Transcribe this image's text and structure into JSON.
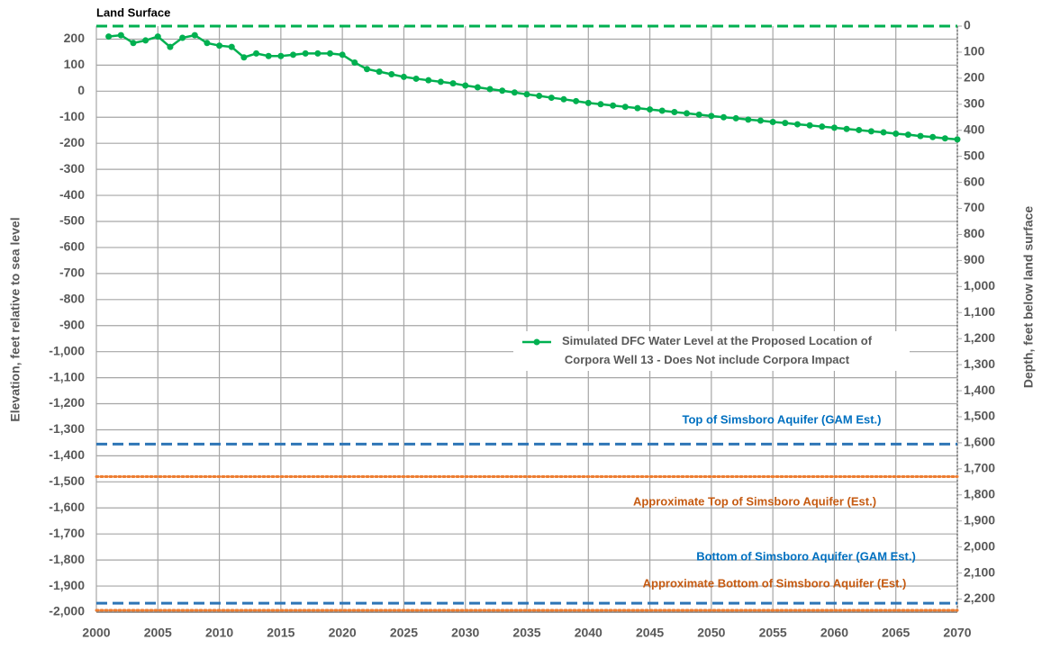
{
  "chart_data": {
    "type": "line",
    "ylabel": "Elevation, feet relative to sea level",
    "y2label": "Depth, feet below land surface",
    "x": [
      2001,
      2002,
      2003,
      2004,
      2005,
      2006,
      2007,
      2008,
      2009,
      2010,
      2011,
      2012,
      2013,
      2014,
      2015,
      2016,
      2017,
      2018,
      2019,
      2020,
      2021,
      2022,
      2023,
      2024,
      2025,
      2026,
      2027,
      2028,
      2029,
      2030,
      2031,
      2032,
      2033,
      2034,
      2035,
      2036,
      2037,
      2038,
      2039,
      2040,
      2041,
      2042,
      2043,
      2044,
      2045,
      2046,
      2047,
      2048,
      2049,
      2050,
      2051,
      2052,
      2053,
      2054,
      2055,
      2056,
      2057,
      2058,
      2059,
      2060,
      2061,
      2062,
      2063,
      2064,
      2065,
      2066,
      2067,
      2068,
      2069,
      2070
    ],
    "series": [
      {
        "name": "Simulated DFC Water Level at the Proposed Location of\nCorpora Well 13  - Does Not include Corpora Impact",
        "color": "#00b050",
        "values": [
          210,
          215,
          185,
          195,
          210,
          170,
          205,
          215,
          185,
          175,
          170,
          130,
          145,
          135,
          135,
          140,
          145,
          145,
          145,
          140,
          110,
          85,
          75,
          65,
          55,
          48,
          42,
          36,
          30,
          22,
          15,
          8,
          2,
          -5,
          -12,
          -18,
          -25,
          -31,
          -38,
          -45,
          -50,
          -55,
          -60,
          -65,
          -70,
          -75,
          -80,
          -85,
          -90,
          -95,
          -100,
          -104,
          -109,
          -113,
          -118,
          -122,
          -127,
          -131,
          -136,
          -140,
          -145,
          -149,
          -154,
          -158,
          -163,
          -167,
          -172,
          -176,
          -181,
          -185
        ]
      }
    ],
    "reference_lines": [
      {
        "label": "Land Surface",
        "value": 250,
        "color": "#00b050",
        "style": "dashed"
      },
      {
        "label": "Top of Simsboro Aquifer (GAM Est.)",
        "value": -1355,
        "color": "#2e75b6",
        "label_color": "#0070c0",
        "style": "dashed"
      },
      {
        "label": "Approximate Top of Simsboro Aquifer (Est.)",
        "value": -1480,
        "color": "#ed7d31",
        "label_color": "#c55a11",
        "style": "dotted"
      },
      {
        "label": "Bottom of Simsboro Aquifer (GAM Est.)",
        "value": -1966,
        "color": "#2e75b6",
        "label_color": "#0070c0",
        "style": "dashed"
      },
      {
        "label": "Approximate Bottom of Simsboro Aquifer (Est.)",
        "value": -1993,
        "color": "#ed7d31",
        "label_color": "#c55a11",
        "style": "dotted"
      }
    ],
    "xlim": [
      2000,
      2070
    ],
    "xticks": [
      2000,
      2005,
      2010,
      2015,
      2020,
      2025,
      2030,
      2035,
      2040,
      2045,
      2050,
      2055,
      2060,
      2065,
      2070
    ],
    "ylim": [
      -2000,
      250
    ],
    "yticks": [
      {
        "value": -2000,
        "label": "-2,000"
      },
      {
        "value": -1900,
        "label": "-1,900"
      },
      {
        "value": -1800,
        "label": "-1,800"
      },
      {
        "value": -1700,
        "label": "-1,700"
      },
      {
        "value": -1600,
        "label": "-1,600"
      },
      {
        "value": -1500,
        "label": "-1,500"
      },
      {
        "value": -1400,
        "label": "-1,400"
      },
      {
        "value": -1300,
        "label": "-1,300"
      },
      {
        "value": -1200,
        "label": "-1,200"
      },
      {
        "value": -1100,
        "label": "-1,100"
      },
      {
        "value": -1000,
        "label": "-1,000"
      },
      -900,
      -800,
      -700,
      -600,
      -500,
      -400,
      -300,
      -200,
      -100,
      0,
      100,
      200
    ],
    "y2lim": [
      2250,
      0
    ],
    "y2ticks": [
      0,
      100,
      200,
      300,
      400,
      500,
      600,
      700,
      800,
      900,
      {
        "value": 1000,
        "label": "1,000"
      },
      {
        "value": 1100,
        "label": "1,100"
      },
      {
        "value": 1200,
        "label": "1,200"
      },
      {
        "value": 1300,
        "label": "1,300"
      },
      {
        "value": 1400,
        "label": "1,400"
      },
      {
        "value": 1500,
        "label": "1,500"
      },
      {
        "value": 1600,
        "label": "1,600"
      },
      {
        "value": 1700,
        "label": "1,700"
      },
      {
        "value": 1800,
        "label": "1,800"
      },
      {
        "value": 1900,
        "label": "1,900"
      },
      {
        "value": 2000,
        "label": "2,000"
      },
      {
        "value": 2100,
        "label": "2,100"
      },
      {
        "value": 2200,
        "label": "2,200"
      }
    ],
    "grid": true,
    "legend": "center-right"
  }
}
